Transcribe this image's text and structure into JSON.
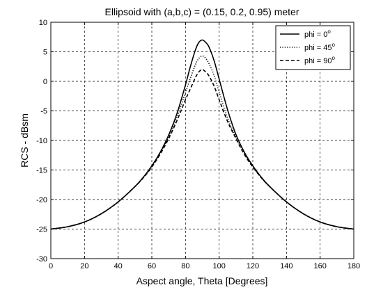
{
  "chart_data": {
    "type": "line",
    "title": "Ellipsoid with (a,b,c) = (0.15, 0.2, 0.95)  meter",
    "xlabel": "Aspect angle, Theta [Degrees]",
    "ylabel": "RCS - dBsm",
    "xlim": [
      0,
      180
    ],
    "ylim": [
      -30,
      10
    ],
    "xticks": [
      "0",
      "20",
      "40",
      "60",
      "80",
      "100",
      "120",
      "140",
      "160",
      "180"
    ],
    "yticks": [
      "10",
      "5",
      "0",
      "-5",
      "-10",
      "-15",
      "-20",
      "-25",
      "-30"
    ],
    "grid": true,
    "legend_position": "top-right",
    "x": [
      0,
      10,
      20,
      30,
      40,
      50,
      55,
      60,
      65,
      70,
      75,
      80,
      83,
      86,
      88,
      90,
      92,
      94,
      97,
      100,
      105,
      110,
      115,
      120,
      125,
      130,
      140,
      150,
      160,
      170,
      180
    ],
    "series": [
      {
        "name": "phi = 0",
        "name_sup": "o",
        "dash": "solid",
        "values": [
          -25.0,
          -24.6,
          -23.8,
          -22.4,
          -20.4,
          -17.8,
          -16.2,
          -14.3,
          -12.0,
          -9.1,
          -5.4,
          -0.6,
          2.6,
          5.4,
          6.6,
          7.0,
          6.6,
          5.8,
          3.5,
          0.4,
          -4.8,
          -9.0,
          -12.0,
          -14.3,
          -16.2,
          -17.8,
          -20.4,
          -22.4,
          -23.8,
          -24.6,
          -25.0
        ]
      },
      {
        "name": "phi = 45",
        "name_sup": "o",
        "dash": "dotted",
        "values": [
          -25.0,
          -24.6,
          -23.8,
          -22.4,
          -20.4,
          -17.8,
          -16.3,
          -14.4,
          -12.1,
          -9.4,
          -6.0,
          -1.9,
          0.6,
          2.9,
          3.9,
          4.3,
          3.9,
          3.0,
          1.0,
          -1.8,
          -6.2,
          -9.4,
          -12.2,
          -14.4,
          -16.3,
          -17.8,
          -20.4,
          -22.4,
          -23.8,
          -24.6,
          -25.0
        ]
      },
      {
        "name": "phi = 90",
        "name_sup": "o",
        "dash": "dashed",
        "values": [
          -25.0,
          -24.6,
          -23.8,
          -22.4,
          -20.4,
          -17.8,
          -16.3,
          -14.5,
          -12.3,
          -9.7,
          -6.6,
          -3.1,
          -1.2,
          0.7,
          1.6,
          2.0,
          1.6,
          0.9,
          -0.8,
          -3.1,
          -6.8,
          -9.7,
          -12.4,
          -14.5,
          -16.3,
          -17.8,
          -20.4,
          -22.4,
          -23.8,
          -24.6,
          -25.0
        ]
      }
    ]
  }
}
